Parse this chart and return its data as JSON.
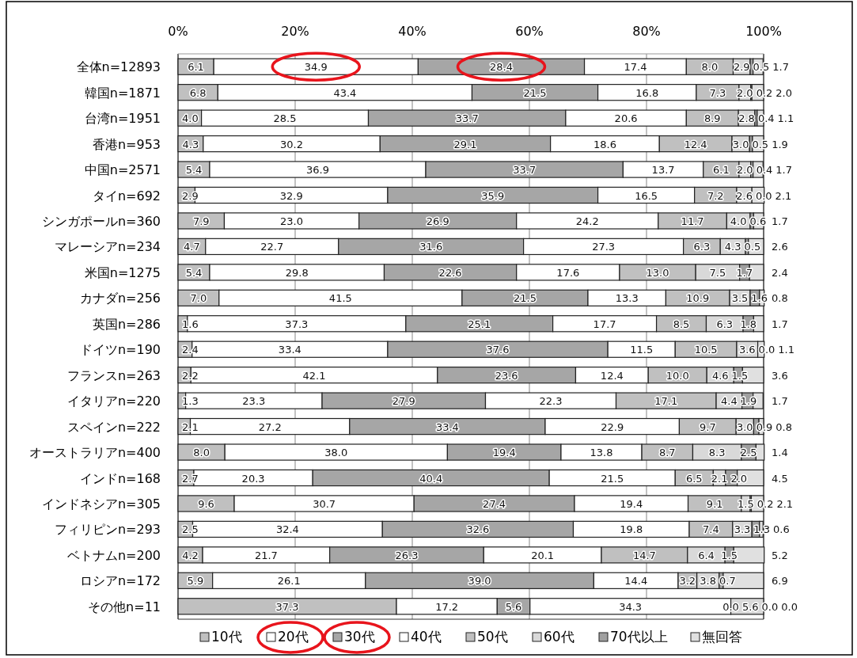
{
  "chart_data": {
    "type": "bar",
    "orientation": "horizontal",
    "stacked": true,
    "grid": "x",
    "legend": "bottom",
    "categories": [
      "全体n=12893",
      "韓国n=1871",
      "台湾n=1951",
      "香港n=953",
      "中国n=2571",
      "タイn=692",
      "シンガポールn=360",
      "マレーシアn=234",
      "米国n=1275",
      "カナダn=256",
      "英国n=286",
      "ドイツn=190",
      "フランスn=263",
      "イタリアn=220",
      "スペインn=222",
      "オーストラリアn=400",
      "インドn=168",
      "インドネシアn=305",
      "フィリピンn=293",
      "ベトナムn=200",
      "ロシアn=172",
      "その他n=11"
    ],
    "xlim": [
      0,
      100
    ],
    "xticks": [
      {
        "value": 0,
        "label": "0%"
      },
      {
        "value": 20,
        "label": "20%"
      },
      {
        "value": 40,
        "label": "40%"
      },
      {
        "value": 60,
        "label": "60%"
      },
      {
        "value": 80,
        "label": "80%"
      },
      {
        "value": 100,
        "label": "100%"
      }
    ],
    "series": [
      {
        "name": "10代",
        "color": "#c0c0c0",
        "values": [
          6.1,
          6.8,
          4.0,
          4.3,
          5.4,
          2.9,
          7.9,
          4.7,
          5.4,
          7.0,
          1.6,
          2.4,
          2.2,
          1.3,
          2.1,
          8.0,
          2.7,
          9.6,
          2.5,
          4.2,
          5.9,
          37.3
        ],
        "value_labels": [
          "6.1",
          "6.8",
          "4.0",
          "4.3",
          "5.4",
          "2.9",
          "7.9",
          "4.7",
          "5.4",
          "7.0",
          "1.6",
          "2.4",
          "2.2",
          "1.3",
          "2.1",
          "8.0",
          "2.7",
          "9.6",
          "2.5",
          "4.2",
          "5.9",
          "37.3"
        ]
      },
      {
        "name": "20代",
        "color": "#ffffff",
        "values": [
          34.9,
          43.4,
          28.5,
          30.2,
          36.9,
          32.9,
          23.0,
          22.7,
          29.8,
          41.5,
          37.3,
          33.4,
          42.1,
          23.3,
          27.2,
          38.0,
          20.3,
          30.7,
          32.4,
          21.7,
          26.1,
          17.2
        ],
        "value_labels": [
          "34.9",
          "43.4",
          "28.5",
          "30.2",
          "36.9",
          "32.9",
          "23.0",
          "22.7",
          "29.8",
          "41.5",
          "37.3",
          "33.4",
          "42.1",
          "23.3",
          "27.2",
          "38.0",
          "20.3",
          "30.7",
          "32.4",
          "21.7",
          "26.1",
          "17.2"
        ]
      },
      {
        "name": "30代",
        "color": "#a6a6a6",
        "values": [
          28.4,
          21.5,
          33.7,
          29.1,
          33.7,
          35.9,
          26.9,
          31.6,
          22.6,
          21.5,
          25.1,
          37.6,
          23.6,
          27.9,
          33.4,
          19.4,
          40.4,
          27.4,
          32.6,
          26.3,
          39.0,
          5.6
        ],
        "value_labels": [
          "28.4",
          "21.5",
          "33.7",
          "29.1",
          "33.7",
          "35.9",
          "26.9",
          "31.6",
          "22.6",
          "21.5",
          "25.1",
          "37.6",
          "23.6",
          "27.9",
          "33.4",
          "19.4",
          "40.4",
          "27.4",
          "32.6",
          "26.3",
          "39.0",
          "5.6"
        ]
      },
      {
        "name": "40代",
        "color": "#ffffff",
        "values": [
          17.4,
          16.8,
          20.6,
          18.6,
          13.7,
          16.5,
          24.2,
          27.3,
          17.6,
          13.3,
          17.7,
          11.5,
          12.4,
          22.3,
          22.9,
          13.8,
          21.5,
          19.4,
          19.8,
          20.1,
          14.4,
          34.3
        ],
        "value_labels": [
          "17.4",
          "16.8",
          "20.6",
          "18.6",
          "13.7",
          "16.5",
          "24.2",
          "27.3",
          "17.6",
          "13.3",
          "17.7",
          "11.5",
          "12.4",
          "22.3",
          "22.9",
          "13.8",
          "21.5",
          "19.4",
          "19.8",
          "20.1",
          "14.4",
          "34.3"
        ]
      },
      {
        "name": "50代",
        "color": "#c0c0c0",
        "values": [
          8.0,
          7.3,
          8.9,
          12.4,
          6.1,
          7.2,
          11.7,
          6.3,
          13.0,
          10.9,
          8.5,
          10.5,
          10.0,
          17.1,
          9.7,
          8.7,
          6.5,
          9.1,
          7.4,
          14.7,
          3.2,
          0.0
        ],
        "value_labels": [
          "8.0",
          "7.3",
          "8.9",
          "12.4",
          "6.1",
          "7.2",
          "11.7",
          "6.3",
          "13.0",
          "10.9",
          "8.5",
          "10.5",
          "10.0",
          "17.1",
          "9.7",
          "8.7",
          "6.5",
          "9.1",
          "7.4",
          "14.7",
          "3.2",
          "0.0"
        ]
      },
      {
        "name": "60代",
        "color": "#d9d9d9",
        "values": [
          2.9,
          2.0,
          2.8,
          3.0,
          2.0,
          2.6,
          4.0,
          4.3,
          7.5,
          3.5,
          6.3,
          3.6,
          4.6,
          4.4,
          3.0,
          8.3,
          2.1,
          1.5,
          3.3,
          6.4,
          3.8,
          5.6
        ],
        "value_labels": [
          "2.9",
          "2.0",
          "2.8",
          "3.0",
          "2.0",
          "2.6",
          "4.0",
          "4.3",
          "7.5",
          "3.5",
          "6.3",
          "3.6",
          "4.6",
          "4.4",
          "3.0",
          "8.3",
          "2.1",
          "1.5",
          "3.3",
          "6.4",
          "3.8",
          "5.6"
        ]
      },
      {
        "name": "70代以上",
        "color": "#a0a0a0",
        "values": [
          0.5,
          0.2,
          0.4,
          0.5,
          0.4,
          0.0,
          0.6,
          0.5,
          1.7,
          1.6,
          1.8,
          0.0,
          1.5,
          1.9,
          0.9,
          2.5,
          2.0,
          0.2,
          1.3,
          1.5,
          0.7,
          0.0
        ],
        "value_labels": [
          "0.5",
          "0.2",
          "0.4",
          "0.5",
          "0.4",
          "0.0",
          "0.6",
          "0.5",
          "1.7",
          "1.6",
          "1.8",
          "0.0",
          "1.5",
          "1.9",
          "0.9",
          "2.5",
          "2.0",
          "0.2",
          "1.3",
          "1.5",
          "0.7",
          "0.0"
        ]
      },
      {
        "name": "無回答",
        "color": "#e0e0e0",
        "values": [
          1.7,
          2.0,
          1.1,
          1.9,
          1.7,
          2.1,
          1.7,
          2.6,
          2.4,
          0.8,
          1.7,
          1.1,
          3.6,
          1.7,
          0.8,
          1.4,
          4.5,
          2.1,
          0.6,
          5.2,
          6.9,
          0.0
        ],
        "value_labels": [
          "1.7",
          "2.0",
          "1.1",
          "1.9",
          "1.7",
          "2.1",
          "1.7",
          "2.6",
          "2.4",
          "0.8",
          "1.7",
          "1.1",
          "3.6",
          "1.7",
          "0.8",
          "1.4",
          "4.5",
          "2.1",
          "0.6",
          "5.2",
          "6.9",
          "0.0"
        ]
      }
    ]
  }
}
